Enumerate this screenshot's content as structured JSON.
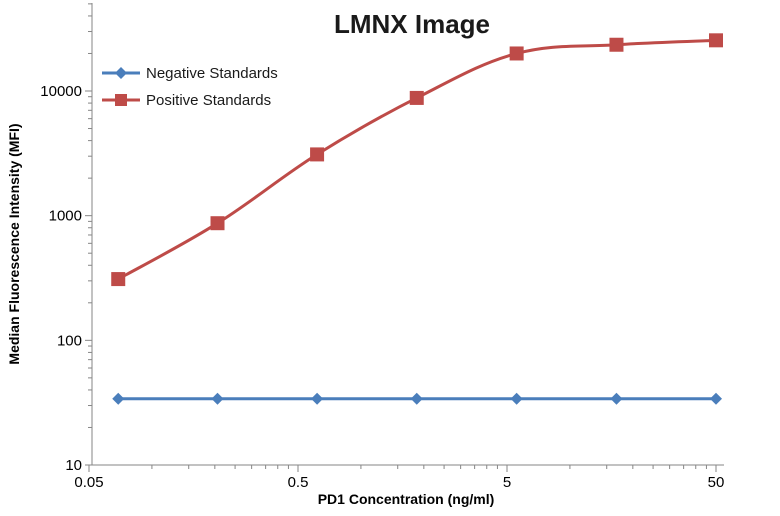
{
  "chart_data": {
    "type": "line",
    "title": "LMNX Image",
    "xlabel": "PD1 Concentration  (ng/ml)",
    "ylabel": "Median Fluorescence Intensity (MFI)",
    "x_scale": "log",
    "y_scale": "log",
    "xlim": [
      0.05,
      50
    ],
    "ylim": [
      10,
      50000
    ],
    "x_ticks": [
      0.05,
      0.5,
      5,
      50
    ],
    "x_tick_labels": [
      "0.05",
      "0.5",
      "5",
      "50"
    ],
    "y_ticks": [
      10,
      100,
      1000,
      10000
    ],
    "y_tick_labels": [
      "10",
      "100",
      "1000",
      "10000"
    ],
    "grid": false,
    "legend_position": "top-left",
    "x": [
      0.069,
      0.206,
      0.617,
      1.85,
      5.56,
      16.7,
      50
    ],
    "series": [
      {
        "name": "Negative Standards",
        "color": "#4a7ebb",
        "marker": "diamond",
        "values": [
          34,
          34,
          34,
          34,
          34,
          34,
          34
        ]
      },
      {
        "name": "Positive Standards",
        "color": "#be4b48",
        "marker": "square",
        "values": [
          310,
          870,
          3100,
          8800,
          20000,
          23500,
          25500
        ]
      }
    ]
  }
}
